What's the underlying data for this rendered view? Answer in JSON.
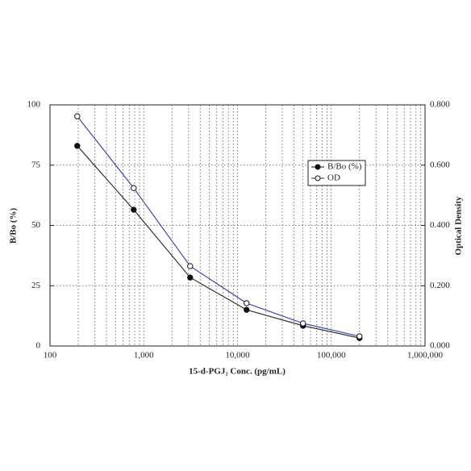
{
  "chart_data": {
    "type": "line",
    "x_label": "15-d-PGJ₂ Conc. (pg/mL)",
    "y_label": "B/Bo (%)",
    "y2_label": "Optical Density",
    "x": [
      195.3,
      781.3,
      3125,
      12500,
      50000,
      200000
    ],
    "xscale": "log",
    "xlim": [
      100,
      1000000
    ],
    "xticks": [
      100,
      {
        "value": 1000,
        "label": "1,000"
      },
      {
        "value": 10000,
        "label": "10,000"
      },
      {
        "value": 100000,
        "label": "100,000"
      },
      {
        "value": 1000000,
        "label": "1,000,000"
      }
    ],
    "ylim": [
      0,
      100
    ],
    "yticks": [
      0,
      25,
      50,
      75,
      100
    ],
    "y2lim": [
      0,
      0.8
    ],
    "y2ticks": [
      {
        "value": 0,
        "label": "0.000"
      },
      {
        "value": 0.2,
        "label": "0.200"
      },
      {
        "value": 0.4,
        "label": "0.400"
      },
      {
        "value": 0.6,
        "label": "0.600"
      },
      {
        "value": 0.8,
        "label": "0.800"
      }
    ],
    "grid": true,
    "legend": "upper right",
    "series": [
      {
        "name": "B/Bo (%)",
        "color": "#333333",
        "marker": "filled",
        "values": [
          83,
          56.5,
          28.4,
          15,
          8.4,
          3.3
        ]
      },
      {
        "name": "OD",
        "color": "#3a4aa8",
        "marker": "open",
        "axis": "y2",
        "values": [
          0.762,
          0.524,
          0.265,
          0.142,
          0.075,
          0.032
        ]
      }
    ]
  }
}
